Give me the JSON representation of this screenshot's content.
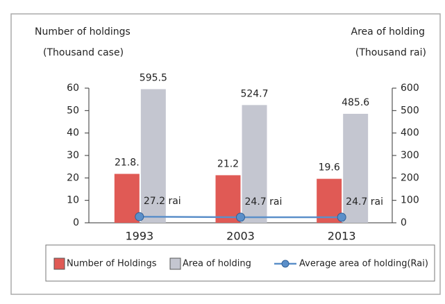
{
  "chart_data": {
    "type": "bar",
    "y_label_line1": "Number of holdings",
    "y_label_line2": "(Thousand case)",
    "y2_label_line1": "Area of holding",
    "y2_label_line2": "(Thousand rai)",
    "categories": [
      "1993",
      "2003",
      "2013"
    ],
    "series": [
      {
        "name": "Number of Holdings",
        "color": "#e05a55",
        "type": "bar",
        "values": [
          21.8,
          21.2,
          19.6
        ],
        "value_labels": [
          "21.8.",
          "21.2",
          "19.6"
        ]
      },
      {
        "name": "Area of holding",
        "color": "#c4c6d0",
        "type": "bar",
        "axis": "y2",
        "values": [
          595.5,
          524.7,
          485.6
        ]
      },
      {
        "name": "Average area of holding(Rai)",
        "color": "#5b8fc9",
        "type": "line",
        "axis": "y2",
        "values": [
          27.2,
          24.7,
          24.7
        ],
        "value_labels": [
          "27.2 rai",
          "24.7 rai",
          "24.7 rai"
        ]
      }
    ],
    "ylim": [
      0,
      60
    ],
    "yticks": [
      0,
      10,
      20,
      30,
      40,
      50,
      60
    ],
    "y2lim": [
      0,
      600
    ],
    "y2ticks": [
      0,
      100,
      200,
      300,
      400,
      500,
      600
    ]
  }
}
